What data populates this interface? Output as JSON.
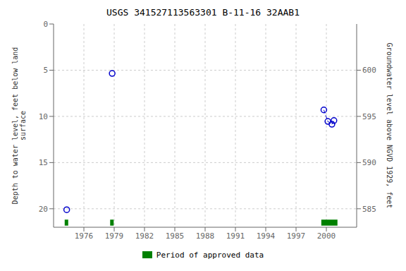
{
  "chart_data": {
    "type": "scatter",
    "title": "USGS 341527113563301 B-11-16 32AAB1",
    "ylabel": "Depth to water level, feet below land\n surface",
    "y2label": "Groundwater level above NGVD 1929, feet",
    "xlim": [
      1973.0,
      2003.0
    ],
    "xticks": [
      1976,
      1979,
      1982,
      1985,
      1988,
      1991,
      1994,
      1997,
      2000
    ],
    "ylim": [
      22,
      0
    ],
    "yticks": [
      0,
      5,
      10,
      15,
      20
    ],
    "y2lim": [
      583,
      605
    ],
    "y2ticks": [
      600,
      595,
      590,
      585
    ],
    "grid": true,
    "legend": "bottom",
    "series": [
      {
        "type": "scatter",
        "marker": "circle_open",
        "color": "#0000cc",
        "x": [
          1974.3,
          1978.8,
          1999.75,
          2000.15,
          2000.55,
          2000.75
        ],
        "values": [
          20.1,
          5.35,
          9.3,
          10.55,
          10.85,
          10.45
        ]
      },
      {
        "type": "line",
        "line_style": "dashed",
        "color": "#0000cc",
        "x": [
          1999.75,
          2000.15,
          2000.55,
          2000.75
        ],
        "values": [
          9.3,
          10.55,
          10.85,
          10.45
        ]
      },
      {
        "type": "range",
        "name": "Period of approved data",
        "color": "#008000",
        "xstart": [
          1974.1,
          1978.6,
          1999.5
        ],
        "xend": [
          1974.45,
          1978.95,
          2001.1
        ]
      }
    ]
  }
}
